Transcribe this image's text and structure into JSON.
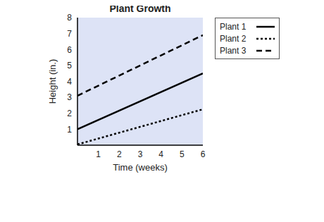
{
  "chart_data": {
    "type": "line",
    "title": "Plant Growth",
    "x_label": "Time (weeks)",
    "y_label": "Height (in.)",
    "x": [
      0,
      6
    ],
    "series": [
      {
        "name": "Plant 1",
        "color": "#000000",
        "line_style": "solid",
        "values": [
          1.0,
          4.5
        ]
      },
      {
        "name": "Plant 2",
        "color": "#000000",
        "line_style": "dotted",
        "values": [
          0.05,
          2.25
        ]
      },
      {
        "name": "Plant 3",
        "color": "#000000",
        "line_style": "dashed",
        "values": [
          3.1,
          6.9
        ]
      }
    ],
    "xlim": [
      0,
      6
    ],
    "xticks": [
      1,
      2,
      3,
      4,
      5,
      6
    ],
    "ylim": [
      0,
      8
    ],
    "yticks": [
      1,
      2,
      3,
      4,
      5,
      6,
      7,
      8
    ],
    "grid": false,
    "legend": "upper right"
  }
}
